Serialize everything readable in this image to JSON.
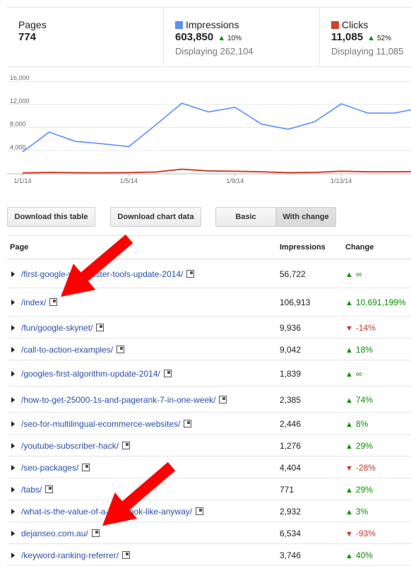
{
  "stats": {
    "pages": {
      "label": "Pages",
      "value": "774"
    },
    "impressions": {
      "label": "Impressions",
      "value": "603,850",
      "delta": "10%",
      "sub": "Displaying 262,104",
      "color": "#5b8ff9"
    },
    "clicks": {
      "label": "Clicks",
      "value": "11,085",
      "delta": "52%",
      "sub": "Displaying 11,085",
      "color": "#d0412f"
    }
  },
  "chart_data": {
    "type": "line",
    "x": [
      "1/1/14",
      "1/2/14",
      "1/3/14",
      "1/4/14",
      "1/5/14",
      "1/6/14",
      "1/7/14",
      "1/8/14",
      "1/9/14",
      "1/10/14",
      "1/11/14",
      "1/12/14",
      "1/13/14",
      "1/14/14",
      "1/15/14",
      "1/16/14"
    ],
    "xticks": [
      "1/1/14",
      "1/5/14",
      "1/9/14",
      "1/13/14"
    ],
    "yticks": [
      "16,000",
      "12,000",
      "8,000",
      "4,000"
    ],
    "ylim": [
      0,
      16000
    ],
    "series": [
      {
        "name": "Impressions",
        "color": "#5b8ff9",
        "values": [
          3800,
          7200,
          5600,
          5200,
          4700,
          8400,
          12200,
          10700,
          11500,
          8600,
          7700,
          9000,
          12100,
          10500,
          10500,
          11400
        ]
      },
      {
        "name": "Clicks",
        "color": "#d0412f",
        "values": [
          150,
          250,
          200,
          180,
          220,
          300,
          800,
          500,
          450,
          350,
          200,
          250,
          450,
          350,
          350,
          400
        ]
      }
    ],
    "grid": true
  },
  "buttons": {
    "download_table": "Download this table",
    "download_chart": "Download chart data",
    "basic": "Basic",
    "with_change": "With change"
  },
  "table": {
    "columns": [
      "Page",
      "Impressions",
      "Change"
    ],
    "rows": [
      {
        "page": "/first-google-webmaster-tools-update-2014/",
        "impressions": "56,722",
        "change": "∞",
        "dir": "up"
      },
      {
        "page": "/index/",
        "impressions": "106,913",
        "change": "10,691,199%",
        "dir": "up"
      },
      {
        "page": "/fun/google-skynet/",
        "impressions": "9,936",
        "change": "-14%",
        "dir": "down"
      },
      {
        "page": "/call-to-action-examples/",
        "impressions": "9,042",
        "change": "18%",
        "dir": "up"
      },
      {
        "page": "/googles-first-algorithm-update-2014/",
        "impressions": "1,839",
        "change": "∞",
        "dir": "up"
      },
      {
        "page": "/how-to-get-25000-1s-and-pagerank-7-in-one-week/",
        "impressions": "2,385",
        "change": "74%",
        "dir": "up"
      },
      {
        "page": "/seo-for-multilingual-ecommerce-websites/",
        "impressions": "2,446",
        "change": "8%",
        "dir": "up"
      },
      {
        "page": "/youtube-subscriber-hack/",
        "impressions": "1,276",
        "change": "29%",
        "dir": "up"
      },
      {
        "page": "/seo-packages/",
        "impressions": "4,404",
        "change": "-28%",
        "dir": "down"
      },
      {
        "page": "/tabs/",
        "impressions": "771",
        "change": "29%",
        "dir": "up"
      },
      {
        "page": "/what-is-the-value-of-a-facebook-like-anyway/",
        "impressions": "2,932",
        "change": "3%",
        "dir": "up"
      },
      {
        "page": "dejanseo.com.au/",
        "impressions": "6,534",
        "change": "-93%",
        "dir": "down"
      },
      {
        "page": "/keyword-ranking-referrer/",
        "impressions": "3,746",
        "change": "40%",
        "dir": "up"
      }
    ]
  },
  "annotations": {
    "arrow_color": "#ff0000"
  }
}
